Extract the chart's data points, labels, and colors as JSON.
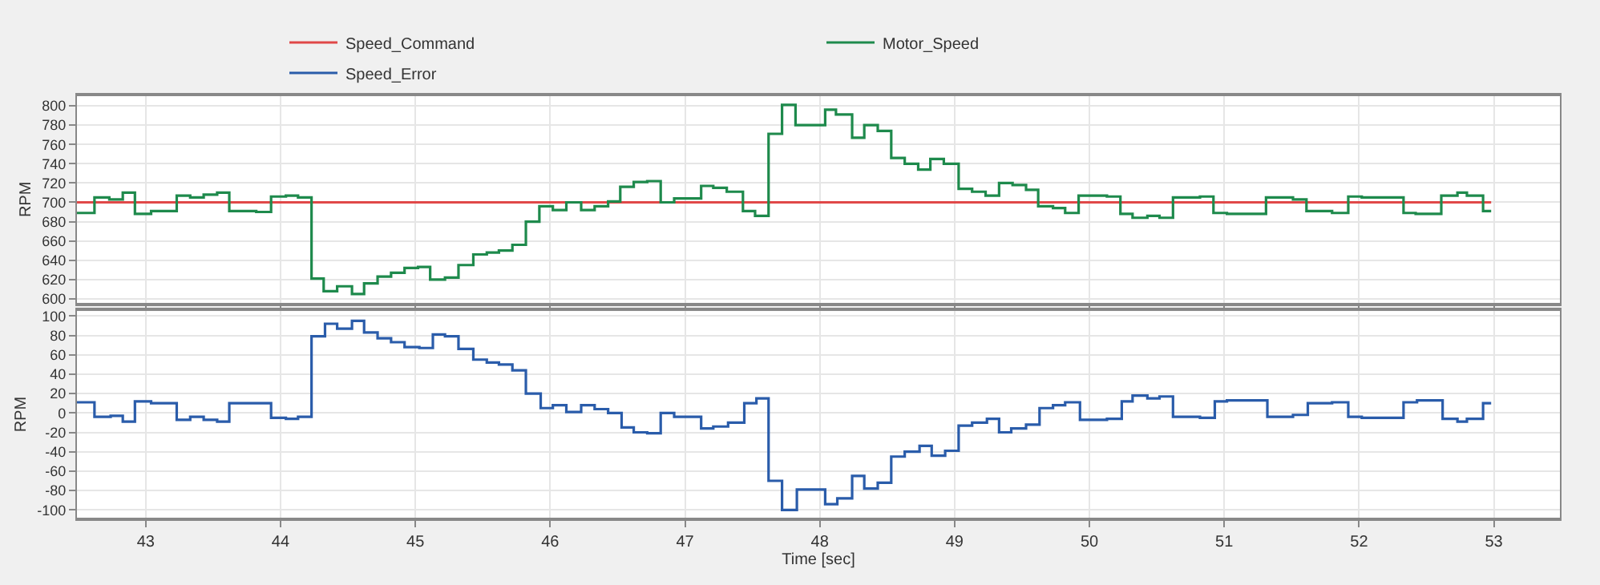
{
  "chart_data": [
    {
      "type": "step",
      "ylabel": "RPM",
      "xlim": [
        42.49,
        53.49
      ],
      "xticks": [
        43,
        44,
        45,
        46,
        47,
        48,
        49,
        50,
        51,
        52,
        53
      ],
      "ylim": [
        596,
        810
      ],
      "yticks": [
        600,
        620,
        640,
        660,
        680,
        700,
        720,
        740,
        760,
        780,
        800
      ],
      "tick_labels": "y",
      "grid": true,
      "legend": "top",
      "marker": "none",
      "line_style": "solid",
      "series": [
        {
          "name": "Speed_Command",
          "color": "#e04848",
          "x": [
            42.49,
            52.98
          ],
          "values": [
            700,
            700
          ]
        },
        {
          "name": "Motor_Speed",
          "color": "#1e8a4c",
          "x": [
            42.49,
            42.62,
            42.73,
            42.83,
            42.92,
            43.04,
            43.23,
            43.33,
            43.43,
            43.53,
            43.62,
            43.82,
            43.93,
            44.04,
            44.13,
            44.23,
            44.32,
            44.42,
            44.53,
            44.62,
            44.72,
            44.82,
            44.92,
            45.02,
            45.11,
            45.22,
            45.32,
            45.43,
            45.53,
            45.62,
            45.72,
            45.82,
            45.92,
            46.02,
            46.12,
            46.23,
            46.33,
            46.43,
            46.52,
            46.62,
            46.72,
            46.82,
            46.92,
            47.12,
            47.21,
            47.31,
            47.43,
            47.52,
            47.62,
            47.72,
            47.82,
            48.04,
            48.12,
            48.24,
            48.33,
            48.43,
            48.53,
            48.63,
            48.73,
            48.82,
            48.92,
            49.03,
            49.13,
            49.23,
            49.33,
            49.43,
            49.53,
            49.62,
            49.73,
            49.82,
            49.92,
            50.02,
            50.13,
            50.23,
            50.32,
            50.43,
            50.52,
            50.62,
            50.72,
            50.82,
            50.92,
            51.02,
            51.31,
            51.51,
            51.61,
            51.8,
            51.92,
            52.02,
            52.33,
            52.42,
            52.61,
            52.73,
            52.8,
            52.92,
            52.98
          ],
          "values": [
            689,
            705,
            703,
            710,
            688,
            691,
            707,
            705,
            708,
            710,
            691,
            690,
            706,
            707,
            705,
            621,
            608,
            613,
            605,
            616,
            623,
            627,
            632,
            633,
            620,
            622,
            635,
            646,
            648,
            650,
            656,
            680,
            696,
            692,
            700,
            692,
            696,
            701,
            716,
            721,
            722,
            700,
            704,
            717,
            715,
            711,
            691,
            686,
            771,
            801,
            780,
            796,
            791,
            767,
            780,
            774,
            746,
            740,
            734,
            745,
            740,
            714,
            711,
            707,
            720,
            718,
            713,
            696,
            694,
            689,
            707,
            707,
            706,
            688,
            684,
            686,
            684,
            705,
            705,
            706,
            689,
            688,
            705,
            703,
            691,
            689,
            706,
            705,
            689,
            688,
            707,
            710,
            707,
            691,
            691
          ]
        }
      ]
    },
    {
      "type": "step",
      "ylabel": "RPM",
      "xlabel": "Time [sec]",
      "xlim": [
        42.49,
        53.49
      ],
      "xticks": [
        43,
        44,
        45,
        46,
        47,
        48,
        49,
        50,
        51,
        52,
        53
      ],
      "ylim": [
        -108,
        105
      ],
      "yticks": [
        -100,
        -80,
        -60,
        -40,
        -20,
        0,
        20,
        40,
        60,
        80,
        100
      ],
      "grid": true,
      "legend": "top",
      "marker": "none",
      "line_style": "solid",
      "series": [
        {
          "name": "Speed_Error",
          "color": "#2a5caa",
          "x": [
            42.49,
            42.62,
            42.74,
            42.83,
            42.92,
            43.04,
            43.23,
            43.33,
            43.43,
            43.53,
            43.62,
            43.82,
            43.93,
            44.04,
            44.13,
            44.23,
            44.33,
            44.42,
            44.53,
            44.62,
            44.72,
            44.82,
            44.92,
            45.03,
            45.13,
            45.22,
            45.32,
            45.43,
            45.53,
            45.62,
            45.72,
            45.82,
            45.93,
            46.02,
            46.12,
            46.23,
            46.33,
            46.43,
            46.53,
            46.62,
            46.72,
            46.82,
            46.92,
            47.12,
            47.21,
            47.32,
            47.44,
            47.53,
            47.62,
            47.72,
            47.83,
            48.04,
            48.13,
            48.24,
            48.33,
            48.43,
            48.53,
            48.63,
            48.74,
            48.83,
            48.93,
            49.03,
            49.13,
            49.24,
            49.33,
            49.42,
            49.53,
            49.63,
            49.73,
            49.82,
            49.93,
            50.13,
            50.24,
            50.32,
            50.43,
            50.52,
            50.62,
            50.82,
            50.93,
            51.02,
            51.32,
            51.51,
            51.62,
            51.8,
            51.92,
            52.02,
            52.33,
            52.43,
            52.62,
            52.73,
            52.8,
            52.92,
            52.98
          ],
          "values": [
            11,
            -4,
            -3,
            -9,
            12,
            10,
            -7,
            -4,
            -7,
            -9,
            10,
            10,
            -5,
            -6,
            -4,
            79,
            92,
            87,
            95,
            83,
            77,
            73,
            68,
            67,
            81,
            79,
            66,
            55,
            52,
            50,
            44,
            20,
            5,
            8,
            1,
            8,
            4,
            0,
            -15,
            -20,
            -21,
            0,
            -4,
            -16,
            -14,
            -10,
            10,
            15,
            -70,
            -100,
            -79,
            -94,
            -88,
            -65,
            -78,
            -72,
            -45,
            -40,
            -34,
            -44,
            -39,
            -13,
            -10,
            -6,
            -20,
            -16,
            -12,
            5,
            8,
            11,
            -7,
            -6,
            12,
            18,
            15,
            17,
            -4,
            -5,
            12,
            13,
            -4,
            -2,
            10,
            11,
            -4,
            -5,
            11,
            13,
            -6,
            -9,
            -6,
            10,
            10
          ]
        }
      ]
    }
  ]
}
